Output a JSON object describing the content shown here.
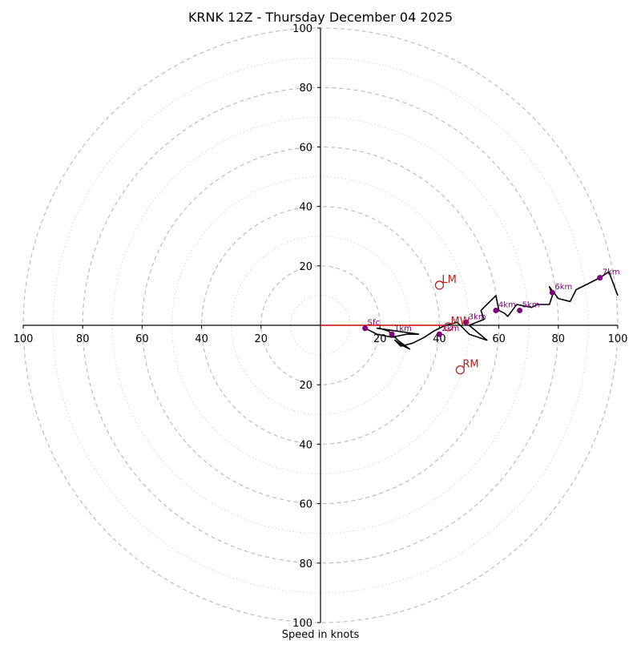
{
  "chart_data": {
    "type": "hodograph",
    "title": "KRNK 12Z - Thursday December 04 2025",
    "xlabel": "Speed in knots",
    "range": [
      0,
      100
    ],
    "rings_major": [
      20,
      40,
      60,
      80,
      100
    ],
    "rings_minor": [
      10,
      30,
      50,
      70,
      90
    ],
    "x_tick_labels": [
      "100",
      "80",
      "60",
      "40",
      "20",
      "20",
      "40",
      "60",
      "80",
      "100"
    ],
    "x_tick_values": [
      -100,
      -80,
      -60,
      -40,
      -20,
      20,
      40,
      60,
      80,
      100
    ],
    "y_tick_labels": [
      "100",
      "80",
      "60",
      "40",
      "20",
      "20",
      "40",
      "60",
      "80",
      "100"
    ],
    "y_tick_values": [
      100,
      80,
      60,
      40,
      20,
      -20,
      -40,
      -60,
      -80,
      -100
    ],
    "hodograph": {
      "u": [
        15,
        19,
        24,
        29,
        33,
        19,
        20,
        23,
        26,
        30,
        28,
        25,
        27,
        31,
        35,
        38,
        40,
        42,
        46,
        50,
        56,
        50,
        55,
        54,
        59,
        60,
        62,
        63,
        66,
        71,
        73,
        77,
        78,
        77,
        80,
        84,
        86,
        90,
        94,
        97,
        100
      ],
      "v": [
        -1,
        -3,
        -4,
        -3,
        -3,
        -1,
        -1,
        -2,
        -5,
        -8,
        -7,
        -5,
        -7,
        -6,
        -4,
        -2,
        -1,
        0,
        1,
        -3,
        -5,
        0,
        2,
        5,
        10,
        5,
        4,
        3,
        7,
        6,
        7,
        7,
        10,
        13,
        9,
        8,
        12,
        14,
        16,
        18,
        10
      ]
    },
    "height_markers": [
      {
        "label": "Sfc",
        "u": 15,
        "v": -1
      },
      {
        "label": "1km",
        "u": 24,
        "v": -3
      },
      {
        "label": "2km",
        "u": 40,
        "v": -3
      },
      {
        "label": "3km",
        "u": 49,
        "v": 1
      },
      {
        "label": "4km",
        "u": 59,
        "v": 5
      },
      {
        "label": "5km",
        "u": 67,
        "v": 5
      },
      {
        "label": "6km",
        "u": 78,
        "v": 11
      },
      {
        "label": "7km",
        "u": 94,
        "v": 16
      }
    ],
    "shear_vector": {
      "u1": 0,
      "v1": 0,
      "u2": 42,
      "v2": 0
    },
    "storm_motions": [
      {
        "label": "LM",
        "u": 40,
        "v": 13.5
      },
      {
        "label": "RM",
        "u": 47,
        "v": -15
      },
      {
        "label": "MW",
        "u": 43,
        "v": -0.5
      }
    ]
  }
}
